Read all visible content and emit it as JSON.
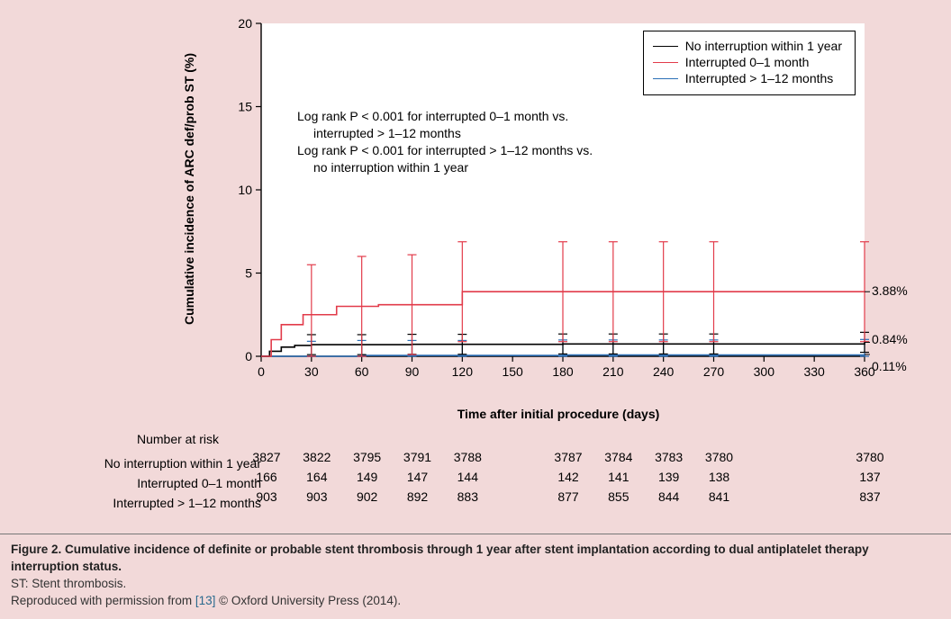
{
  "colors": {
    "page_bg": "#f2d9d9",
    "plot_bg": "#ffffff",
    "axis": "#000000",
    "series_none": "#000000",
    "series_0_1": "#e23b4a",
    "series_1_12": "#2b6fb6",
    "text": "#222222",
    "caption_ref": "#2a6a8e"
  },
  "chart": {
    "type": "step-line-km",
    "y_label": "Cumulative incidence of ARC def/prob ST (%)",
    "x_label": "Time after initial procedure (days)",
    "xlim": [
      0,
      360
    ],
    "ylim": [
      0,
      20
    ],
    "y_ticks": [
      0,
      5,
      10,
      15,
      20
    ],
    "x_ticks": [
      0,
      30,
      60,
      90,
      120,
      150,
      180,
      210,
      240,
      270,
      300,
      330,
      360
    ],
    "ci_bar_x": [
      30,
      60,
      90,
      120,
      180,
      210,
      240,
      270,
      360
    ],
    "line_width": 1.6,
    "font_size_ticks": 14,
    "font_size_labels": 14,
    "legend": {
      "position": "top-right",
      "items": [
        {
          "label": "No interruption within 1 year",
          "color": "#000000"
        },
        {
          "label": "Interrupted 0–1 month",
          "color": "#e23b4a"
        },
        {
          "label": "Interrupted > 1–12 months",
          "color": "#2b6fb6"
        }
      ]
    },
    "annotation": {
      "l1": "Log rank P < 0.001 for interrupted 0–1 month vs.",
      "l2": "interrupted > 1–12 months",
      "l3": "Log rank P < 0.001 for interrupted > 1–12 months vs.",
      "l4": "no interruption within 1 year"
    },
    "series": {
      "none": {
        "label": "No interruption within 1 year",
        "color": "#000000",
        "end_label": "0.84%",
        "points": [
          {
            "x": 0,
            "y": 0.0
          },
          {
            "x": 5,
            "y": 0.3
          },
          {
            "x": 12,
            "y": 0.55
          },
          {
            "x": 20,
            "y": 0.65
          },
          {
            "x": 30,
            "y": 0.7
          },
          {
            "x": 90,
            "y": 0.72
          },
          {
            "x": 180,
            "y": 0.74
          },
          {
            "x": 360,
            "y": 0.84
          }
        ],
        "ci_half": 0.6
      },
      "int_0_1": {
        "label": "Interrupted 0–1 month",
        "color": "#e23b4a",
        "end_label": "3.88%",
        "points": [
          {
            "x": 0,
            "y": 0.0
          },
          {
            "x": 6,
            "y": 1.0
          },
          {
            "x": 12,
            "y": 1.9
          },
          {
            "x": 25,
            "y": 2.5
          },
          {
            "x": 45,
            "y": 3.0
          },
          {
            "x": 70,
            "y": 3.1
          },
          {
            "x": 110,
            "y": 3.1
          },
          {
            "x": 120,
            "y": 3.88
          },
          {
            "x": 360,
            "y": 3.88
          }
        ],
        "ci_half": 3.0
      },
      "int_1_12": {
        "label": "Interrupted > 1–12 months",
        "color": "#2b6fb6",
        "end_label": "0.11%",
        "points": [
          {
            "x": 0,
            "y": 0.0
          },
          {
            "x": 60,
            "y": 0.05
          },
          {
            "x": 180,
            "y": 0.08
          },
          {
            "x": 360,
            "y": 0.11
          }
        ],
        "ci_half": 0.9
      }
    }
  },
  "risk_table": {
    "title": "Number at risk",
    "x_positions": [
      0,
      30,
      60,
      90,
      120,
      180,
      210,
      240,
      270,
      360
    ],
    "rows": [
      {
        "label": "No interruption within 1 year",
        "cells": [
          "3827",
          "3822",
          "3795",
          "3791",
          "3788",
          "3787",
          "3784",
          "3783",
          "3780",
          "3780"
        ]
      },
      {
        "label": "Interrupted 0–1 month",
        "cells": [
          "166",
          "164",
          "149",
          "147",
          "144",
          "142",
          "141",
          "139",
          "138",
          "137"
        ]
      },
      {
        "label": "Interrupted > 1–12 months",
        "cells": [
          "903",
          "903",
          "902",
          "892",
          "883",
          "877",
          "855",
          "844",
          "841",
          "837"
        ]
      }
    ]
  },
  "caption": {
    "title": "Figure 2. Cumulative incidence of definite or probable stent thrombosis through 1 year after stent implantation according to dual antiplatelet therapy interruption status.",
    "line2": "ST: Stent thrombosis.",
    "line3a": "Reproduced with permission from ",
    "ref": "[13]",
    "line3b": " © Oxford University Press (2014)."
  }
}
